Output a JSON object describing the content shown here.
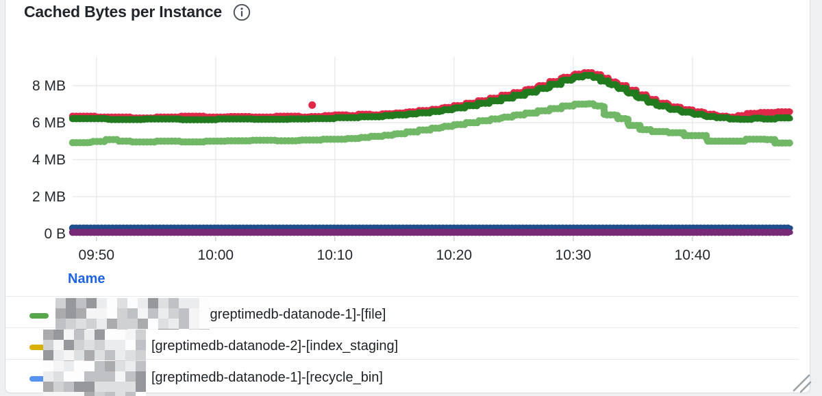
{
  "panel": {
    "title": "Cached Bytes per Instance",
    "info_icon": "info-icon"
  },
  "chart_data": {
    "type": "line",
    "title": "Cached Bytes per Instance",
    "interpolation": "step-after",
    "grid": true,
    "x_axis": {
      "start_time": "09:48",
      "minutes_span": 60.2,
      "tick_labels": [
        "09:50",
        "10:00",
        "10:10",
        "10:20",
        "10:30",
        "10:40"
      ],
      "tick_minutes": [
        2,
        12,
        22,
        32,
        42,
        52
      ]
    },
    "y_axis": {
      "tick_labels": [
        "0 B",
        "2 MB",
        "4 MB",
        "6 MB",
        "8 MB"
      ],
      "tick_values_mb": [
        0,
        2,
        4,
        6,
        8
      ],
      "ylim_mb": [
        0,
        9.55
      ],
      "unit": "bytes"
    },
    "series": [
      {
        "name": "red-series",
        "color": "#e0294a",
        "points": [
          [
            0,
            6.35
          ],
          [
            2,
            6.3
          ],
          [
            5,
            6.25
          ],
          [
            7,
            6.3
          ],
          [
            9,
            6.35
          ],
          [
            11,
            6.3
          ],
          [
            13,
            6.33
          ],
          [
            15,
            6.3
          ],
          [
            17,
            6.35
          ],
          [
            19,
            6.3
          ],
          [
            20,
            6.33
          ],
          [
            21,
            6.38
          ],
          [
            22,
            6.42
          ],
          [
            23,
            6.38
          ],
          [
            24,
            6.45
          ],
          [
            25,
            6.42
          ],
          [
            26,
            6.48
          ],
          [
            27,
            6.52
          ],
          [
            28,
            6.58
          ],
          [
            29,
            6.65
          ],
          [
            30,
            6.72
          ],
          [
            31,
            6.82
          ],
          [
            32,
            6.92
          ],
          [
            33,
            7.05
          ],
          [
            34,
            7.18
          ],
          [
            35,
            7.32
          ],
          [
            36,
            7.48
          ],
          [
            37,
            7.62
          ],
          [
            38,
            7.8
          ],
          [
            39,
            8.0
          ],
          [
            40,
            8.22
          ],
          [
            41,
            8.45
          ],
          [
            42,
            8.62
          ],
          [
            42.8,
            8.7
          ],
          [
            43.6,
            8.6
          ],
          [
            44.3,
            8.4
          ],
          [
            45,
            8.2
          ],
          [
            45.7,
            8.0
          ],
          [
            46.5,
            7.75
          ],
          [
            47.3,
            7.5
          ],
          [
            48.2,
            7.25
          ],
          [
            49,
            7.05
          ],
          [
            50,
            6.85
          ],
          [
            51,
            6.7
          ],
          [
            52,
            6.58
          ],
          [
            53,
            6.45
          ],
          [
            54,
            6.35
          ],
          [
            55,
            6.3
          ],
          [
            55.8,
            6.38
          ],
          [
            56.6,
            6.5
          ],
          [
            57.6,
            6.55
          ],
          [
            59,
            6.58
          ],
          [
            60.2,
            6.6
          ]
        ],
        "outlier_points": [
          [
            20.1,
            6.95
          ]
        ]
      },
      {
        "name": "dark-green-series",
        "color": "#217a1e",
        "points": [
          [
            0,
            6.22
          ],
          [
            3,
            6.17
          ],
          [
            6,
            6.2
          ],
          [
            9,
            6.16
          ],
          [
            12,
            6.2
          ],
          [
            15,
            6.18
          ],
          [
            18,
            6.2
          ],
          [
            20,
            6.22
          ],
          [
            22,
            6.27
          ],
          [
            24,
            6.32
          ],
          [
            26,
            6.38
          ],
          [
            27,
            6.42
          ],
          [
            28,
            6.47
          ],
          [
            29,
            6.53
          ],
          [
            30,
            6.6
          ],
          [
            31,
            6.7
          ],
          [
            32,
            6.8
          ],
          [
            33,
            6.92
          ],
          [
            34,
            7.05
          ],
          [
            35,
            7.18
          ],
          [
            36,
            7.33
          ],
          [
            37,
            7.48
          ],
          [
            38,
            7.65
          ],
          [
            39,
            7.85
          ],
          [
            40,
            8.07
          ],
          [
            41,
            8.3
          ],
          [
            42,
            8.47
          ],
          [
            42.8,
            8.55
          ],
          [
            43.6,
            8.45
          ],
          [
            44.3,
            8.25
          ],
          [
            45,
            8.05
          ],
          [
            45.7,
            7.85
          ],
          [
            46.5,
            7.6
          ],
          [
            47.3,
            7.35
          ],
          [
            48.2,
            7.1
          ],
          [
            49,
            6.9
          ],
          [
            50,
            6.72
          ],
          [
            51,
            6.57
          ],
          [
            52,
            6.45
          ],
          [
            53,
            6.33
          ],
          [
            54,
            6.27
          ],
          [
            55,
            6.2
          ],
          [
            56,
            6.18
          ],
          [
            57,
            6.24
          ],
          [
            58,
            6.2
          ],
          [
            59,
            6.26
          ],
          [
            60.2,
            6.22
          ]
        ],
        "outlier_points": []
      },
      {
        "name": "light-green-series",
        "color": "#70b866",
        "points": [
          [
            0,
            4.92
          ],
          [
            1.5,
            4.98
          ],
          [
            2.8,
            5.08
          ],
          [
            3.8,
            5.0
          ],
          [
            5,
            4.95
          ],
          [
            7,
            5.0
          ],
          [
            9,
            4.96
          ],
          [
            11,
            5.0
          ],
          [
            13,
            5.02
          ],
          [
            15,
            5.05
          ],
          [
            17,
            5.02
          ],
          [
            19,
            5.06
          ],
          [
            21,
            5.1
          ],
          [
            23,
            5.14
          ],
          [
            24,
            5.2
          ],
          [
            25,
            5.26
          ],
          [
            26,
            5.32
          ],
          [
            27,
            5.4
          ],
          [
            28,
            5.5
          ],
          [
            29,
            5.6
          ],
          [
            30,
            5.7
          ],
          [
            31,
            5.8
          ],
          [
            32,
            5.9
          ],
          [
            33,
            6.0
          ],
          [
            34,
            6.1
          ],
          [
            35,
            6.2
          ],
          [
            36,
            6.3
          ],
          [
            37,
            6.42
          ],
          [
            38,
            6.52
          ],
          [
            39,
            6.64
          ],
          [
            40,
            6.76
          ],
          [
            41,
            6.9
          ],
          [
            42,
            7.0
          ],
          [
            43.2,
            7.02
          ],
          [
            43.8,
            6.9
          ],
          [
            44.6,
            6.42
          ],
          [
            45.7,
            6.22
          ],
          [
            46.6,
            5.85
          ],
          [
            47.6,
            5.62
          ],
          [
            48.6,
            5.52
          ],
          [
            50,
            5.45
          ],
          [
            51.3,
            5.3
          ],
          [
            53.2,
            5.0
          ],
          [
            55.8,
            5.0
          ],
          [
            56.5,
            5.1
          ],
          [
            58.2,
            5.08
          ],
          [
            58.9,
            4.9
          ],
          [
            60.2,
            4.9
          ]
        ],
        "outlier_points": []
      },
      {
        "name": "navy-blue-series",
        "color": "#1f4e8c",
        "points": [
          [
            0,
            0.3
          ],
          [
            60.2,
            0.3
          ]
        ],
        "outlier_points": []
      },
      {
        "name": "purple-series",
        "color": "#772a75",
        "points": [
          [
            0,
            0.07
          ],
          [
            60.2,
            0.07
          ]
        ],
        "outlier_points": []
      }
    ]
  },
  "legend": {
    "header": "Name",
    "rows": [
      {
        "swatch_color": "#56a64b",
        "redacted_prefix": true,
        "label": "[greptimedb-datanode-1]-[file]"
      },
      {
        "swatch_color": "#d9b000",
        "redacted_prefix": true,
        "label": "[greptimedb-datanode-2]-[index_staging]"
      },
      {
        "swatch_color": "#5794f2",
        "redacted_prefix": true,
        "label": "[greptimedb-datanode-1]-[recycle_bin]"
      }
    ]
  },
  "colors": {
    "page_bg": "#eef0f1",
    "panel_bg": "#ffffff",
    "panel_border": "#d8dbde",
    "grid_line": "#e9eaec",
    "axis_text": "#24292e",
    "title_text": "#22262b",
    "legend_header_blue": "#1e63e0",
    "legend_text": "#1d2126",
    "separator": "#e8eaec",
    "resize_handle": "#9da1a5",
    "info_icon": "#4a5056"
  }
}
